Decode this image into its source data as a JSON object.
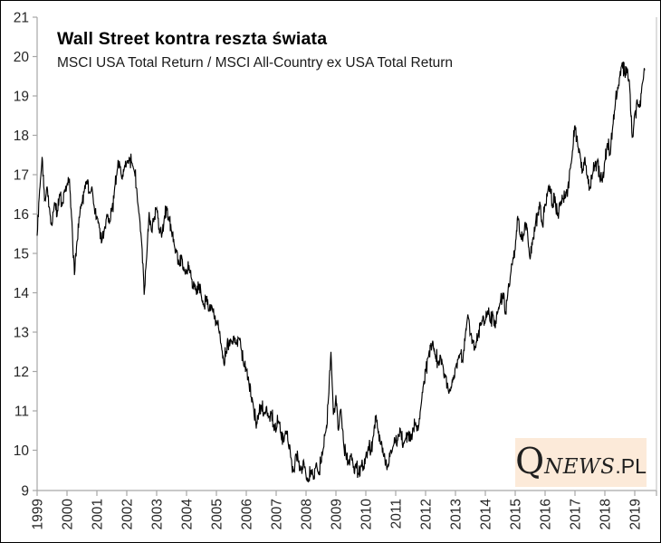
{
  "page": {
    "background": "#ffffff",
    "border_color": "#000000"
  },
  "header": {
    "title": "Wall Street kontra reszta świata",
    "subtitle": "MSCI USA Total Return / MSCI All-Country ex USA Total Return"
  },
  "logo": {
    "q": "Q",
    "news": "NEWS",
    "suffix": ".PL",
    "background": "#fcead9",
    "text_color": "#1f1f1f"
  },
  "chart_data": {
    "type": "line",
    "title": "Wall Street kontra reszta świata",
    "subtitle": "MSCI USA Total Return / MSCI All-Country ex USA Total Return",
    "xlabel": "",
    "ylabel": "",
    "xlim": [
      1999,
      2019.72
    ],
    "ylim": [
      9,
      21
    ],
    "grid": false,
    "legend_position": "none",
    "line_color": "#000000",
    "axis_color": "#a6a6a6",
    "label_color": "#262626",
    "y_ticks": [
      9,
      10,
      11,
      12,
      13,
      14,
      15,
      16,
      17,
      18,
      19,
      20,
      21
    ],
    "x_ticks": [
      1999,
      2000,
      2001,
      2002,
      2003,
      2004,
      2005,
      2006,
      2007,
      2008,
      2009,
      2010,
      2011,
      2012,
      2013,
      2014,
      2015,
      2016,
      2017,
      2018,
      2019
    ],
    "series": [
      {
        "name": "MSCI USA TR / MSCI All-Country ex USA TR",
        "x_start_year": 1999.0,
        "x_step_years": 0.0833333,
        "values": [
          15.45,
          16.6,
          17.45,
          16.35,
          16.7,
          16.15,
          15.7,
          16.3,
          15.95,
          16.5,
          16.2,
          16.6,
          16.75,
          16.9,
          15.8,
          14.45,
          15.3,
          15.9,
          16.3,
          16.6,
          16.85,
          16.55,
          16.7,
          16.15,
          15.95,
          15.65,
          15.3,
          15.6,
          16.0,
          15.75,
          16.1,
          16.55,
          17.0,
          17.35,
          16.9,
          17.15,
          17.3,
          17.45,
          17.3,
          17.1,
          16.65,
          16.0,
          15.25,
          13.95,
          14.9,
          16.05,
          15.55,
          15.9,
          16.15,
          15.65,
          15.4,
          15.85,
          16.2,
          15.85,
          15.55,
          15.25,
          15.05,
          14.7,
          14.95,
          14.6,
          14.5,
          14.7,
          14.35,
          14.15,
          13.95,
          14.2,
          13.9,
          13.65,
          13.85,
          13.55,
          13.7,
          13.45,
          13.3,
          13.05,
          12.65,
          12.2,
          12.5,
          12.65,
          12.8,
          12.9,
          12.7,
          12.85,
          12.55,
          12.15,
          12.05,
          11.75,
          11.35,
          11.05,
          10.55,
          10.95,
          11.15,
          10.9,
          11.1,
          10.85,
          10.95,
          10.6,
          10.5,
          10.75,
          10.35,
          10.2,
          10.5,
          10.1,
          9.8,
          9.45,
          9.9,
          9.7,
          9.5,
          9.75,
          9.35,
          9.2,
          9.5,
          9.25,
          9.65,
          9.4,
          9.75,
          10.05,
          10.5,
          11.3,
          12.5,
          10.9,
          11.4,
          10.5,
          11.05,
          10.25,
          9.9,
          9.65,
          9.85,
          9.55,
          9.65,
          9.4,
          9.6,
          9.5,
          9.85,
          10.1,
          9.95,
          10.35,
          10.85,
          10.45,
          10.15,
          9.9,
          9.7,
          9.65,
          10.0,
          10.1,
          10.25,
          10.4,
          10.45,
          10.1,
          10.3,
          10.45,
          10.25,
          10.55,
          10.7,
          10.5,
          11.05,
          11.6,
          12.0,
          12.35,
          12.65,
          12.75,
          12.35,
          12.2,
          12.4,
          12.15,
          11.85,
          11.6,
          11.5,
          11.85,
          12.1,
          12.3,
          12.45,
          12.25,
          12.95,
          13.45,
          12.95,
          12.75,
          12.6,
          12.9,
          13.25,
          13.4,
          13.3,
          13.55,
          13.25,
          13.45,
          13.1,
          13.5,
          13.75,
          14.0,
          13.45,
          13.95,
          14.4,
          14.8,
          15.1,
          15.95,
          15.45,
          15.3,
          15.8,
          15.5,
          14.85,
          15.35,
          15.65,
          16.0,
          16.25,
          15.7,
          16.25,
          16.55,
          16.7,
          16.15,
          16.45,
          15.95,
          16.3,
          16.4,
          16.5,
          16.45,
          17.15,
          17.6,
          18.25,
          17.85,
          17.55,
          17.05,
          17.45,
          16.9,
          16.65,
          17.0,
          17.2,
          17.35,
          16.9,
          16.8,
          17.35,
          17.8,
          17.5,
          18.1,
          18.65,
          19.1,
          19.5,
          19.85,
          19.55,
          19.7,
          19.2,
          17.95,
          18.55,
          18.9,
          18.7,
          19.3,
          19.65
        ]
      }
    ]
  }
}
